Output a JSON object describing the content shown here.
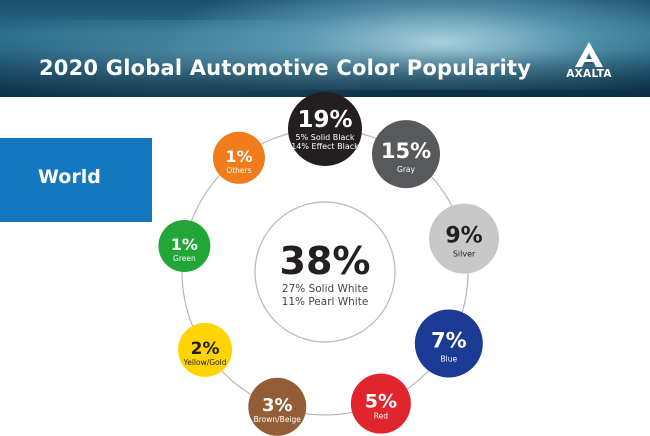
{
  "header": {
    "title": "2020 Global Automotive Color Popularity",
    "logo_text": "AXALTA"
  },
  "region": {
    "label": "World"
  },
  "colors": {
    "banner": "#1f5a78",
    "region_box": "#1478c0"
  },
  "chart_data": {
    "type": "pie",
    "title": "2020 Global Automotive Color Popularity",
    "region": "World",
    "center": {
      "category": "White",
      "value": 38,
      "label": "38%",
      "details": [
        "27% Solid White",
        "11% Pearl White"
      ],
      "color": "#ffffff"
    },
    "categories": [
      "Black",
      "Gray",
      "Silver",
      "Blue",
      "Red",
      "Brown/Beige",
      "Yellow/Gold",
      "Green",
      "Others"
    ],
    "values": [
      19,
      15,
      9,
      7,
      5,
      3,
      2,
      1,
      1
    ],
    "slices": [
      {
        "category": "Black",
        "value": 19,
        "label": "19%",
        "details": [
          "5% Solid Black",
          "14% Effect Black"
        ],
        "color": "#231f20",
        "text_color": "#ffffff"
      },
      {
        "category": "Gray",
        "value": 15,
        "label": "15%",
        "details": [
          "Gray"
        ],
        "color": "#58595b",
        "text_color": "#ffffff"
      },
      {
        "category": "Silver",
        "value": 9,
        "label": "9%",
        "details": [
          "Silver"
        ],
        "color": "#c8c8c8",
        "text_color": "#231f20"
      },
      {
        "category": "Blue",
        "value": 7,
        "label": "7%",
        "details": [
          "Blue"
        ],
        "color": "#1b3a93",
        "text_color": "#ffffff"
      },
      {
        "category": "Red",
        "value": 5,
        "label": "5%",
        "details": [
          "Red"
        ],
        "color": "#e0262c",
        "text_color": "#ffffff"
      },
      {
        "category": "Brown/Beige",
        "value": 3,
        "label": "3%",
        "details": [
          "Brown/Beige"
        ],
        "color": "#935d37",
        "text_color": "#ffffff"
      },
      {
        "category": "Yellow/Gold",
        "value": 2,
        "label": "2%",
        "details": [
          "Yellow/Gold"
        ],
        "color": "#ffd400",
        "text_color": "#231f20"
      },
      {
        "category": "Green",
        "value": 1,
        "label": "1%",
        "details": [
          "Green"
        ],
        "color": "#23a638",
        "text_color": "#ffffff"
      },
      {
        "category": "Others",
        "value": 1,
        "label": "1%",
        "details": [
          "Others"
        ],
        "color": "#f07c1b",
        "text_color": "#ffffff"
      }
    ],
    "ring_color": "#b7b7b7"
  }
}
